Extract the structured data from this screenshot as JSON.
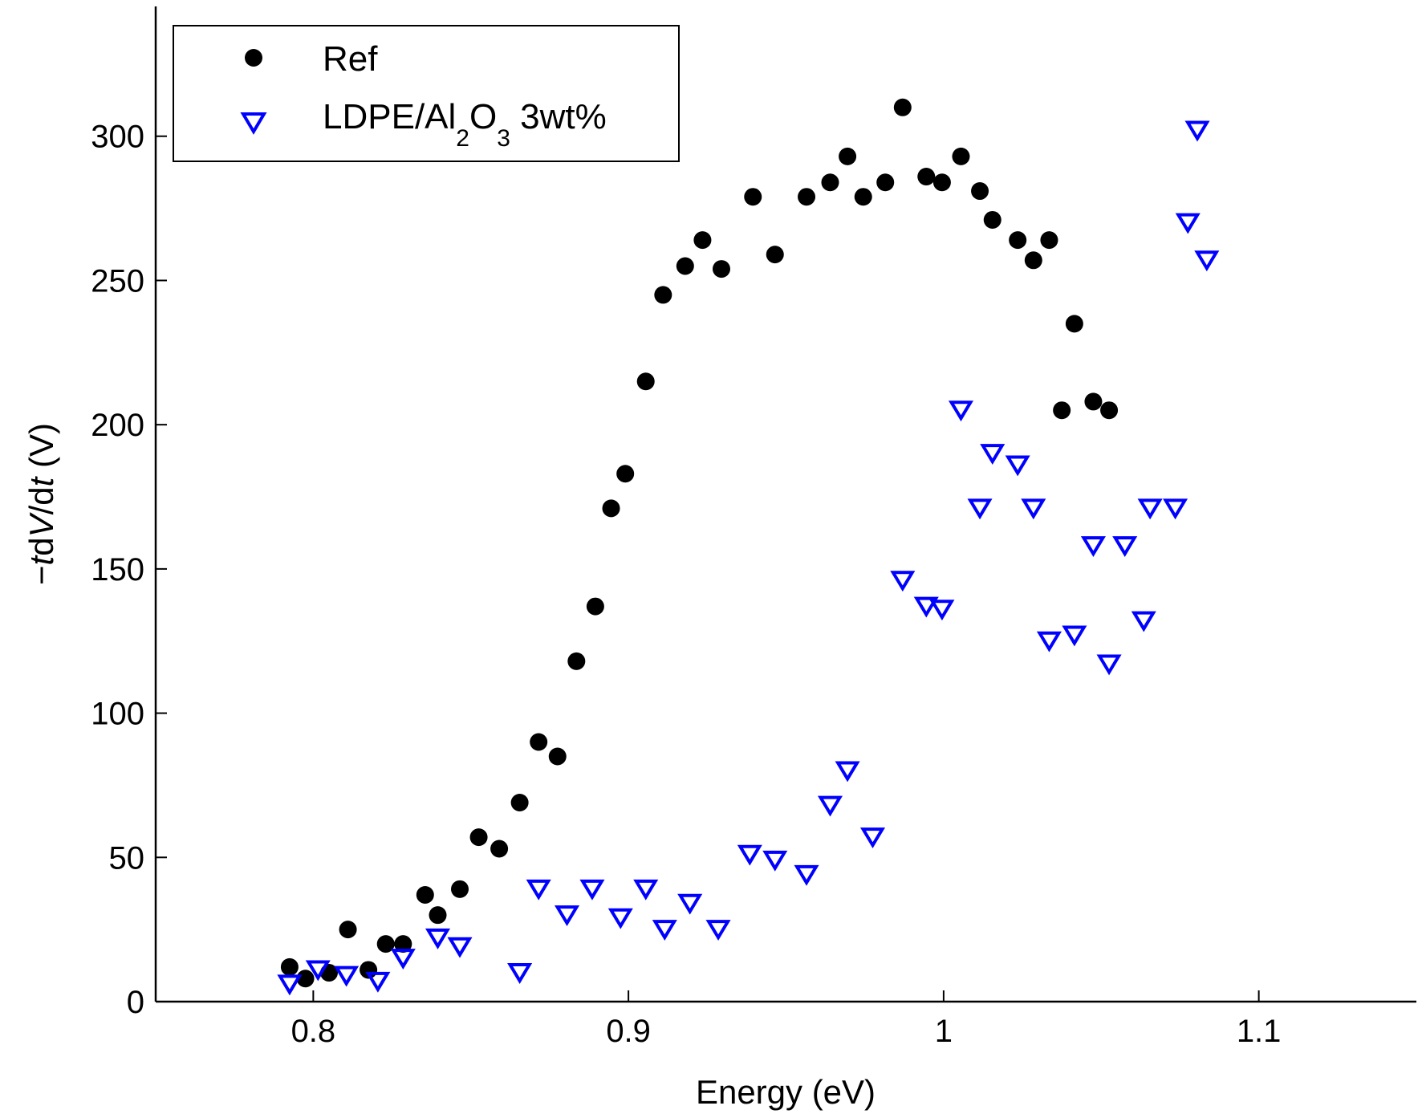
{
  "chart_data": {
    "type": "scatter",
    "title": "",
    "xlabel": "Energy (eV)",
    "ylabel": {
      "minus": "−",
      "t": "t",
      "d1": "d",
      "V": "V",
      "slash": "/d",
      "t2": "t",
      "unit": " (V)"
    },
    "xlim": [
      0.75,
      1.15
    ],
    "ylim": [
      0,
      345
    ],
    "xticks": [
      0.8,
      0.9,
      1.0,
      1.1
    ],
    "xtick_labels": [
      "0.8",
      "0.9",
      "1",
      "1.1"
    ],
    "yticks": [
      0,
      50,
      100,
      150,
      200,
      250,
      300
    ],
    "ytick_labels": [
      "0",
      "50",
      "100",
      "150",
      "200",
      "250",
      "300"
    ],
    "grid": false,
    "legend_position": "top-left",
    "legend": {
      "ref_label": "Ref",
      "ldpe_label_main": "LDPE/Al",
      "ldpe_sub1": "2",
      "ldpe_mid": "O",
      "ldpe_sub2": "3",
      "ldpe_tail": " 3wt%"
    },
    "series": [
      {
        "name": "Ref",
        "marker": "filled-circle",
        "color": "#000000",
        "x": [
          0.7925,
          0.7975,
          0.805,
          0.811,
          0.8175,
          0.823,
          0.8285,
          0.8355,
          0.8395,
          0.8465,
          0.8525,
          0.859,
          0.8655,
          0.8715,
          0.8775,
          0.8835,
          0.8895,
          0.8945,
          0.899,
          0.9055,
          0.911,
          0.918,
          0.9235,
          0.9295,
          0.9395,
          0.9465,
          0.9565,
          0.964,
          0.9695,
          0.9745,
          0.9815,
          0.987,
          0.9945,
          0.9995,
          1.0055,
          1.0115,
          1.0155,
          1.0235,
          1.0285,
          1.0335,
          1.0375,
          1.0415,
          1.0475,
          1.0525
        ],
        "y": [
          12,
          8,
          10,
          25,
          11,
          20,
          20,
          37,
          30,
          39,
          57,
          53,
          69,
          90,
          85,
          118,
          137,
          171,
          183,
          215,
          245,
          255,
          264,
          254,
          279,
          259,
          279,
          284,
          293,
          279,
          284,
          310,
          286,
          284,
          293,
          281,
          271,
          264,
          257,
          264,
          205,
          235,
          208,
          205
        ]
      },
      {
        "name": "LDPE/Al2O3 3wt%",
        "marker": "open-triangle-down",
        "color": "#0000ff",
        "x": [
          0.7925,
          0.8015,
          0.8105,
          0.8205,
          0.8285,
          0.8395,
          0.8465,
          0.8655,
          0.8715,
          0.8805,
          0.8885,
          0.8975,
          0.9055,
          0.9115,
          0.9195,
          0.9285,
          0.9385,
          0.9465,
          0.9565,
          0.964,
          0.9695,
          0.9775,
          0.987,
          0.9945,
          0.9995,
          1.0055,
          1.0115,
          1.0155,
          1.0235,
          1.0285,
          1.0335,
          1.0415,
          1.0475,
          1.0525,
          1.0575,
          1.0635,
          1.0655,
          1.0735,
          1.0775,
          1.0805,
          1.0835
        ],
        "y": [
          6,
          11,
          9,
          7,
          15,
          22,
          19,
          10,
          39,
          30,
          39,
          29,
          39,
          25,
          34,
          25,
          51,
          49,
          44,
          68,
          80,
          57,
          146,
          137,
          136,
          205,
          171,
          190,
          186,
          171,
          125,
          127,
          158,
          117,
          158,
          132,
          171,
          171,
          270,
          302,
          257
        ]
      }
    ]
  }
}
